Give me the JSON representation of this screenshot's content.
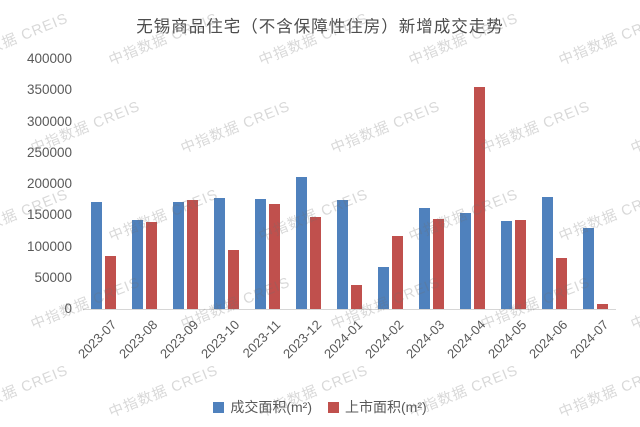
{
  "watermark": {
    "text": "中指数据 CREIS"
  },
  "chart_data": {
    "type": "bar",
    "title": "无锡商品住宅（不含保障性住房）新增成交走势",
    "title_color": "#4d4d4d",
    "label_color": "#595959",
    "axis_color": "#d6d6d6",
    "categories": [
      "2023-07",
      "2023-08",
      "2023-09",
      "2023-10",
      "2023-11",
      "2023-12",
      "2024-01",
      "2024-02",
      "2024-03",
      "2024-04",
      "2024-05",
      "2024-06",
      "2024-07"
    ],
    "series": [
      {
        "name": "成交面积(m²)",
        "color": "#4F81BD",
        "values": [
          172000,
          143000,
          172000,
          177000,
          176000,
          212000,
          175000,
          67000,
          161000,
          153000,
          141000,
          179000,
          130000
        ]
      },
      {
        "name": "上市面积(m²)",
        "color": "#C0504D",
        "values": [
          85000,
          140000,
          174000,
          94000,
          168000,
          147000,
          38000,
          117000,
          144000,
          355000,
          142000,
          81000,
          8000
        ]
      }
    ],
    "ylim": [
      0,
      400000
    ],
    "yticks": [
      0,
      50000,
      100000,
      150000,
      200000,
      250000,
      300000,
      350000,
      400000
    ],
    "grid": false,
    "legend_position": "bottom"
  }
}
